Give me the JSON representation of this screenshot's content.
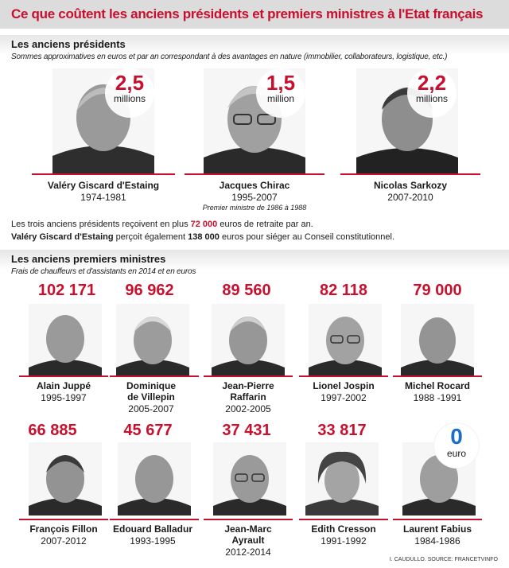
{
  "title": "Ce que coûtent les anciens présidents et premiers ministres à l'Etat français",
  "presidents": {
    "title": "Les anciens présidents",
    "subtitle": "Sommes approximatives en euros et par an correspondant à des avantages en nature (immobilier, collaborateurs, logistique, etc.)",
    "people": [
      {
        "name": "Valéry Giscard d'Estaing",
        "years": "1974-1981",
        "amount": "2,5",
        "unit": "millions"
      },
      {
        "name": "Jacques Chirac",
        "years": "1995-2007",
        "amount": "1,5",
        "unit": "million",
        "note": "Premier ministre de 1986 à 1988"
      },
      {
        "name": "Nicolas Sarkozy",
        "years": "2007-2010",
        "amount": "2,2",
        "unit": "millions"
      }
    ],
    "line1_pre": "Les trois anciens présidents reçoivent en plus ",
    "line1_amount": "72 000",
    "line1_post": " euros de retraite par an.",
    "line2_name": "Valéry Giscard d'Estaing",
    "line2_mid": " perçoit également ",
    "line2_amount": "138 000",
    "line2_post": " euros pour siéger au Conseil constitutionnel."
  },
  "ministers": {
    "title": "Les anciens premiers ministres",
    "subtitle": "Frais de chauffeurs et d'assistants en 2014 et en euros",
    "people": [
      {
        "amount": "102 171",
        "name": "Alain Juppé",
        "name2": "",
        "years": "1995-1997"
      },
      {
        "amount": "96 962",
        "name": "Dominique",
        "name2": "de Villepin",
        "years": "2005-2007"
      },
      {
        "amount": "89 560",
        "name": "Jean-Pierre",
        "name2": "Raffarin",
        "years": "2002-2005"
      },
      {
        "amount": "82 118",
        "name": "Lionel Jospin",
        "name2": "",
        "years": "1997-2002"
      },
      {
        "amount": "79 000",
        "name": "Michel Rocard",
        "name2": "",
        "years": "1988 -1991"
      },
      {
        "amount": "66 885",
        "name": "François Fillon",
        "name2": "",
        "years": "2007-2012"
      },
      {
        "amount": "45 677",
        "name": "Edouard Balladur",
        "name2": "",
        "years": "1993-1995"
      },
      {
        "amount": "37 431",
        "name": "Jean-Marc",
        "name2": "Ayrault",
        "years": "2012-2014"
      },
      {
        "amount": "33 817",
        "name": "Edith Cresson",
        "name2": "",
        "years": "1991-1992"
      },
      {
        "amount": "0",
        "unit": "euro",
        "name": "Laurent Fabius",
        "name2": "",
        "years": "1984-1986"
      }
    ]
  },
  "credit": "I. CAUDULLO. SOURCE: FRANCETVINFO",
  "colors": {
    "accent": "#c8102e",
    "zero": "#1a6fc4",
    "bar": "#dcdcdc"
  }
}
